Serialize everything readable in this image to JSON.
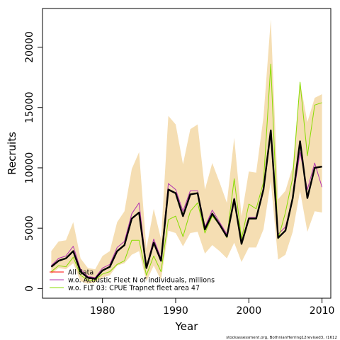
{
  "chart_data": {
    "type": "line",
    "title": "",
    "xlabel": "Year",
    "ylabel": "Recruits",
    "xlim": [
      1971.8,
      2011.2
    ],
    "ylim": [
      -800,
      23200
    ],
    "x_ticks": [
      1980,
      1990,
      2000,
      2010
    ],
    "y_ticks": [
      0,
      5000,
      10000,
      15000,
      20000
    ],
    "x_tick_labels": [
      "1980",
      "1990",
      "2000",
      "2010"
    ],
    "y_tick_labels": [
      "0",
      "5000",
      "10000",
      "15000",
      "20000"
    ],
    "grid": false,
    "legend_position": "bottom-left",
    "footnote": "stockassessment.org, BothnianHerring12revised3, r1612",
    "x": [
      1973,
      1974,
      1975,
      1976,
      1977,
      1978,
      1979,
      1980,
      1981,
      1982,
      1983,
      1984,
      1985,
      1986,
      1987,
      1988,
      1989,
      1990,
      1991,
      1992,
      1993,
      1994,
      1995,
      1996,
      1997,
      1998,
      1999,
      2000,
      2001,
      2002,
      2003,
      2004,
      2005,
      2006,
      2007,
      2008,
      2009,
      2010
    ],
    "confidence_band": {
      "color": "#F5DEB3",
      "lower": [
        1200,
        1700,
        1600,
        2100,
        600,
        400,
        500,
        900,
        1100,
        1900,
        2100,
        2800,
        3100,
        600,
        1900,
        700,
        4800,
        4600,
        3500,
        4600,
        4700,
        2900,
        3600,
        3100,
        2500,
        3800,
        2200,
        3400,
        3400,
        4900,
        8900,
        2400,
        2800,
        4700,
        8100,
        4700,
        6400,
        6300
      ],
      "upper": [
        3100,
        3900,
        4000,
        5500,
        2500,
        1700,
        1600,
        2700,
        3100,
        5500,
        6400,
        9900,
        11300,
        3300,
        6600,
        4100,
        14300,
        13600,
        10300,
        13200,
        13600,
        8200,
        10400,
        8800,
        7100,
        12500,
        6000,
        9700,
        9600,
        14200,
        22300,
        7400,
        8100,
        10100,
        17100,
        13800,
        15800,
        16100
      ]
    },
    "series": [
      {
        "name": "All data",
        "color": "#ff0000",
        "values": [
          1800,
          2300,
          2500,
          3100,
          1400,
          900,
          800,
          1500,
          1800,
          3100,
          3600,
          5800,
          6300,
          1700,
          3800,
          2300,
          8200,
          7900,
          6000,
          7800,
          7900,
          4900,
          6200,
          5300,
          4300,
          7400,
          3700,
          5800,
          5800,
          8200,
          13100,
          4200,
          4800,
          7500,
          12200,
          7500,
          10000,
          10100
        ]
      },
      {
        "name": "w.o. Acoustic Fleet  N of individuals, millions",
        "color": "#b030b0",
        "values": [
          1900,
          2500,
          2700,
          3500,
          1600,
          1000,
          900,
          1700,
          2000,
          3400,
          3900,
          6200,
          7100,
          1800,
          4100,
          2500,
          8700,
          8200,
          6400,
          8100,
          8100,
          5100,
          6500,
          5500,
          4500,
          7500,
          3900,
          5900,
          5900,
          8400,
          12800,
          4500,
          5100,
          7400,
          11300,
          8200,
          10400,
          8400
        ]
      },
      {
        "name": "w.o. FLT 03: CPUE Trapnet fleet area 47",
        "color": "#88dd00",
        "values": [
          1400,
          1900,
          1800,
          2600,
          1100,
          700,
          700,
          1200,
          1400,
          2000,
          2300,
          4000,
          4000,
          1100,
          2700,
          1400,
          5700,
          6000,
          4300,
          6400,
          7100,
          4600,
          6000,
          5300,
          4200,
          9100,
          4100,
          7000,
          6600,
          8800,
          18600,
          4100,
          6300,
          9200,
          17100,
          11000,
          15200,
          15400
        ]
      },
      {
        "name": "",
        "color": "#000000",
        "values": [
          1800,
          2300,
          2500,
          3100,
          1400,
          900,
          800,
          1500,
          1800,
          3100,
          3600,
          5800,
          6300,
          1700,
          3800,
          2300,
          8200,
          7900,
          6000,
          7800,
          7900,
          4900,
          6200,
          5300,
          4300,
          7400,
          3700,
          5800,
          5800,
          8200,
          13100,
          4200,
          4800,
          7500,
          12200,
          7500,
          10000,
          10100
        ]
      }
    ]
  }
}
